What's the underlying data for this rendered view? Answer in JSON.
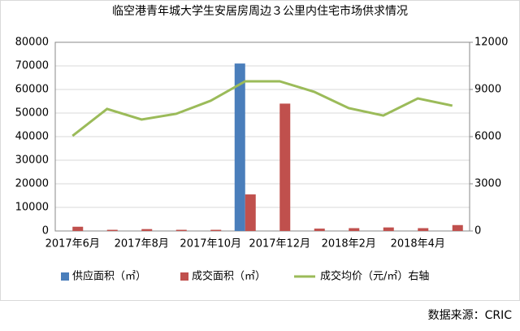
{
  "chart_data": {
    "type": "bar_line",
    "title": "临空港青年城大学生安居房周边３公里内住宅市场供求情况",
    "source": "数据来源：CRIC",
    "categories": [
      "2017年6月",
      null,
      "2017年8月",
      null,
      "2017年10月",
      null,
      "2017年12月",
      null,
      "2018年2月",
      null,
      "2018年4月",
      null
    ],
    "series": [
      {
        "name": "供应面积（㎡）",
        "color": "#4a7ebb",
        "kind": "bar",
        "values": [
          0,
          0,
          0,
          0,
          0,
          71000,
          0,
          0,
          0,
          0,
          0,
          0
        ]
      },
      {
        "name": "成交面积（㎡）",
        "color": "#c0504d",
        "kind": "bar",
        "values": [
          1800,
          500,
          800,
          500,
          500,
          15500,
          54000,
          1000,
          1200,
          1500,
          1200,
          2500
        ]
      },
      {
        "name": "成交均价（元/㎡）右轴",
        "color": "#9bbb59",
        "kind": "line",
        "axis": "y2",
        "values": [
          6050,
          7760,
          7090,
          7450,
          8280,
          9520,
          9520,
          8850,
          7810,
          7340,
          8430,
          7970
        ]
      }
    ],
    "ylim": [
      0,
      80000
    ],
    "yticks": [
      0,
      10000,
      20000,
      30000,
      40000,
      50000,
      60000,
      70000,
      80000
    ],
    "y2lim": [
      0,
      12000
    ],
    "y2ticks": [
      0,
      3000,
      6000,
      9000,
      12000
    ],
    "grid": true
  }
}
